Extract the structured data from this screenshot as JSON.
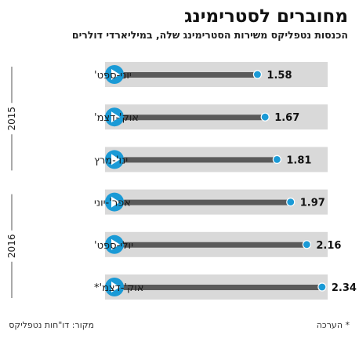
{
  "header": {
    "title": "מחוברים לסטרימינג",
    "subtitle": "הכנסות נטפליקס משירות הסטרימינג שלה, במיליארדי דולרים"
  },
  "footer": {
    "source": "מקור: דו\"חות נטפליקס",
    "note": "* הערכה"
  },
  "colors": {
    "track": "#d9d9d9",
    "bar": "#5a5a5a",
    "marker": "#1a9ad6",
    "play": "#1a9ad6",
    "year_line": "#555555"
  },
  "chart_data": {
    "type": "bar",
    "orientation": "horizontal",
    "title": "מחוברים לסטרימינג",
    "subtitle": "הכנסות נטפליקס משירות הסטרימינג שלה, במיליארדי דולרים",
    "categories": [
      "יוני-ספט'",
      "אוק'-דצמ'",
      "ינו'-מרץ",
      "אפר'-יוני",
      "יולי-ספט'",
      "אוק'-דצמ'*"
    ],
    "values": [
      1.58,
      1.67,
      1.81,
      1.97,
      2.16,
      2.34
    ],
    "value_labels": [
      "1.58",
      "1.67",
      "1.81",
      "1.97",
      "2.16",
      "2.34"
    ],
    "groups": [
      {
        "label": "2015",
        "categories": [
          0,
          1,
          2
        ]
      },
      {
        "label": "2016",
        "categories": [
          3,
          4,
          5
        ]
      }
    ],
    "xlim": [
      0,
      2.5
    ],
    "grid": false,
    "legend": "none"
  }
}
